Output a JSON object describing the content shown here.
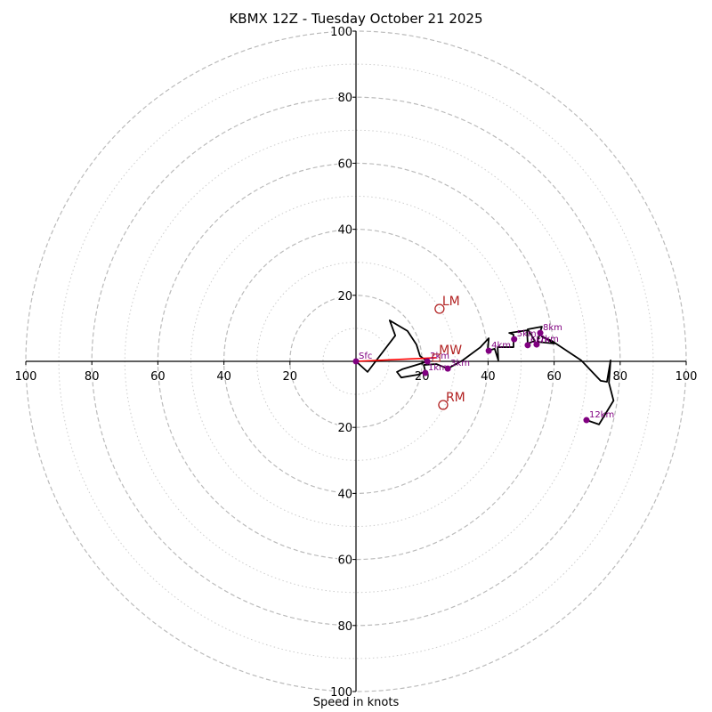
{
  "chart_data": {
    "type": "line",
    "subtype": "hodograph",
    "title": "KBMX 12Z - Tuesday October 21 2025",
    "xlabel": "Speed in knots",
    "ring_max": 100,
    "rings_major": [
      20,
      40,
      60,
      80,
      100
    ],
    "rings_minor": [
      10,
      30,
      50,
      70,
      90
    ],
    "tick_labels": [
      "100",
      "80",
      "60",
      "40",
      "20",
      "20",
      "40",
      "60",
      "80",
      "100"
    ],
    "hodograph_uv": [
      [
        0,
        0
      ],
      [
        3.5,
        -3.2
      ],
      [
        11.9,
        7.8
      ],
      [
        10.2,
        12.4
      ],
      [
        15.6,
        9.2
      ],
      [
        18.3,
        5.1
      ],
      [
        19.4,
        1.6
      ],
      [
        21.6,
        0
      ],
      [
        20.2,
        -0.5
      ],
      [
        14.0,
        -2.4
      ],
      [
        12.4,
        -3.2
      ],
      [
        13.7,
        -4.9
      ],
      [
        18.9,
        -4.0
      ],
      [
        21.0,
        -3.0
      ],
      [
        20.5,
        -1.1
      ],
      [
        24.3,
        -0.8
      ],
      [
        27.8,
        -2.2
      ],
      [
        32.3,
        0.3
      ],
      [
        37.7,
        4.3
      ],
      [
        40.2,
        7.0
      ],
      [
        39.9,
        3.2
      ],
      [
        42.0,
        3.8
      ],
      [
        43.1,
        0.3
      ],
      [
        42.9,
        4.3
      ],
      [
        47.7,
        4.3
      ],
      [
        47.7,
        8.1
      ],
      [
        46.4,
        8.6
      ],
      [
        51.8,
        9.4
      ],
      [
        52.0,
        5.4
      ],
      [
        54.2,
        6.2
      ],
      [
        52.0,
        9.7
      ],
      [
        56.3,
        10.5
      ],
      [
        54.9,
        5.9
      ],
      [
        60.1,
        5.4
      ],
      [
        56.3,
        7.5
      ],
      [
        59.3,
        6.2
      ],
      [
        68.2,
        0.3
      ],
      [
        74.1,
        -5.9
      ],
      [
        76.0,
        -6.2
      ],
      [
        77.1,
        0.3
      ],
      [
        76.6,
        -6.5
      ],
      [
        78.0,
        -11.9
      ],
      [
        73.6,
        -19.1
      ],
      [
        69.8,
        -17.8
      ]
    ],
    "levels": [
      {
        "label": "Sfc",
        "u": 0,
        "v": 0
      },
      {
        "label": "1km",
        "u": 21.0,
        "v": -3.5
      },
      {
        "label": "2km",
        "u": 21.6,
        "v": 0
      },
      {
        "label": "3km",
        "u": 27.8,
        "v": -2.2
      },
      {
        "label": "4km",
        "u": 40.2,
        "v": 3.2
      },
      {
        "label": "5km",
        "u": 47.9,
        "v": 6.7
      },
      {
        "label": "6km",
        "u": 52.0,
        "v": 4.9
      },
      {
        "label": "7km",
        "u": 54.7,
        "v": 5.1
      },
      {
        "label": "8km",
        "u": 55.8,
        "v": 8.6
      },
      {
        "label": "12km",
        "u": 69.8,
        "v": -17.8
      }
    ],
    "storm_motions": [
      {
        "label": "LM",
        "u": 25.3,
        "v": 15.9,
        "marker": "circle"
      },
      {
        "label": "MW",
        "u": 24.3,
        "v": 1.1,
        "marker": "square"
      },
      {
        "label": "RM",
        "u": 26.4,
        "v": -13.2,
        "marker": "circle"
      }
    ],
    "shear_vector": {
      "from": [
        0,
        0
      ],
      "to": [
        24.3,
        1.1
      ],
      "color": "#ff0000"
    },
    "colors": {
      "hodograph": "#000000",
      "levels": "#800080",
      "storm_motion": "#b22222",
      "rings": "#bbbbbb"
    }
  }
}
